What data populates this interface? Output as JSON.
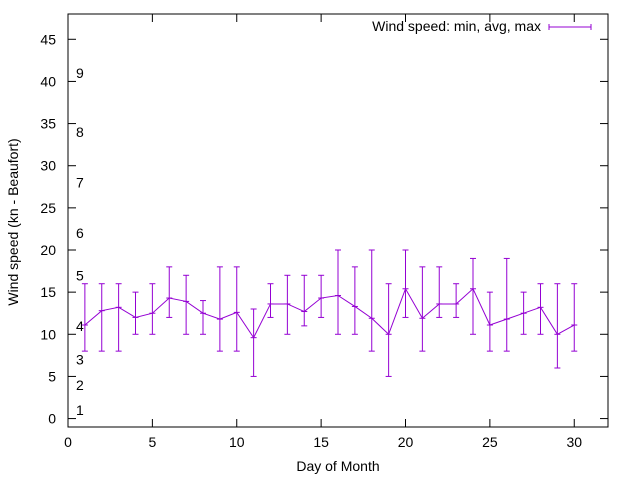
{
  "chart_data": {
    "type": "line",
    "title": "",
    "xlabel": "Day of Month",
    "ylabel": "Wind speed (kn - Beaufort)",
    "xlim": [
      0,
      32
    ],
    "ylim": [
      -1,
      48
    ],
    "x_ticks": [
      "0",
      "5",
      "10",
      "15",
      "20",
      "25",
      "30"
    ],
    "y_ticks": [
      "0",
      "5",
      "10",
      "15",
      "20",
      "25",
      "30",
      "35",
      "40",
      "45"
    ],
    "grid": false,
    "legend_position": "top-right",
    "beaufort_labels": [
      {
        "value": 1,
        "y": 1
      },
      {
        "value": 2,
        "y": 4
      },
      {
        "value": 3,
        "y": 7
      },
      {
        "value": 4,
        "y": 11
      },
      {
        "value": 5,
        "y": 17
      },
      {
        "value": 6,
        "y": 22
      },
      {
        "value": 7,
        "y": 28
      },
      {
        "value": 8,
        "y": 34
      },
      {
        "value": 9,
        "y": 41
      }
    ],
    "series": [
      {
        "name": "Wind speed: min, avg, max",
        "color": "#9400d3",
        "x": [
          1,
          2,
          3,
          4,
          5,
          6,
          7,
          8,
          9,
          10,
          11,
          12,
          13,
          14,
          15,
          16,
          17,
          18,
          19,
          20,
          21,
          22,
          23,
          24,
          25,
          26,
          27,
          28,
          29,
          30
        ],
        "avg": [
          11.1,
          12.8,
          13.2,
          12.0,
          12.5,
          14.3,
          13.9,
          12.5,
          11.8,
          12.6,
          9.6,
          13.6,
          13.6,
          12.7,
          14.3,
          14.6,
          13.3,
          11.9,
          10.0,
          15.4,
          11.9,
          13.6,
          13.6,
          15.4,
          11.1,
          11.8,
          12.5,
          13.2,
          10.0,
          11.1
        ],
        "min": [
          8,
          8,
          8,
          10,
          10,
          12,
          10,
          10,
          8,
          8,
          5,
          12,
          10,
          11,
          12,
          10,
          10,
          8,
          5,
          12,
          8,
          12,
          12,
          10,
          8,
          8,
          10,
          10,
          6,
          8
        ],
        "max": [
          16,
          16,
          16,
          15,
          16,
          18,
          17,
          14,
          18,
          18,
          13,
          16,
          17,
          17,
          17,
          20,
          18,
          20,
          16,
          20,
          18,
          18,
          16,
          19,
          15,
          19,
          15,
          16,
          16,
          16
        ]
      }
    ]
  }
}
